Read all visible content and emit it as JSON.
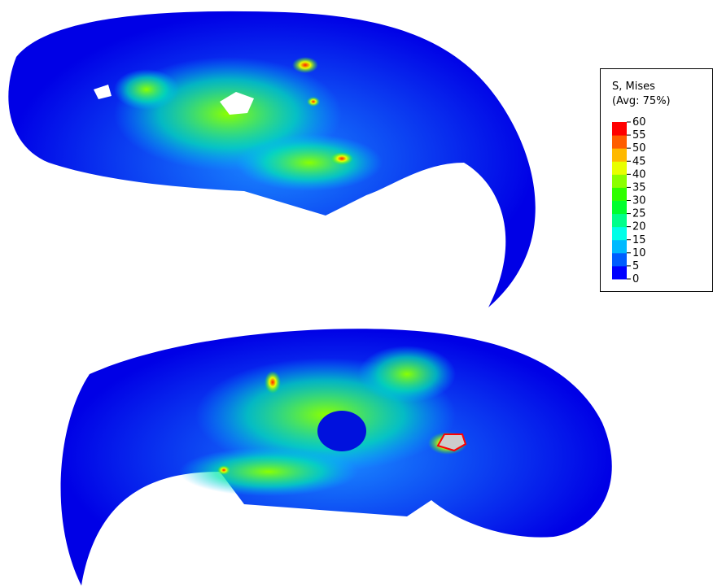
{
  "legend": {
    "title": "S, Mises",
    "subtitle": "(Avg: 75%)",
    "ticks": [
      60,
      55,
      50,
      45,
      40,
      35,
      30,
      25,
      20,
      15,
      10,
      5,
      0
    ],
    "colors": [
      "#0000ff",
      "#005dff",
      "#00b9ff",
      "#00ffe8",
      "#00ff8b",
      "#00ff2e",
      "#2eff00",
      "#8bff00",
      "#e8ff00",
      "#ffb900",
      "#ff5d00",
      "#ff0000"
    ]
  }
}
